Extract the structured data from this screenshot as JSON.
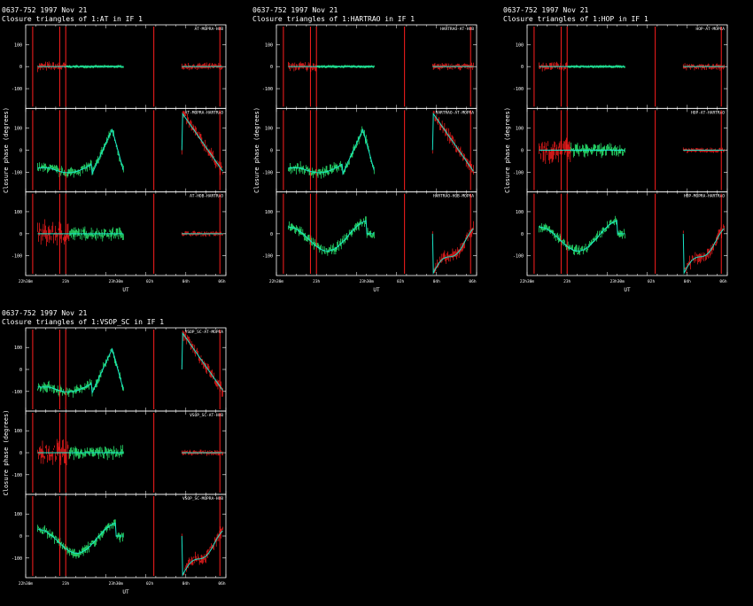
{
  "header": {
    "source": "0637-752",
    "date": "1997 Nov 21"
  },
  "common": {
    "xlabel": "UT",
    "ylabel": "Closure phase  (degrees)",
    "xticks": [
      "22h30m",
      "23h",
      "23h30m",
      "02h",
      "04h",
      "06h"
    ],
    "yticks": [
      "100",
      "0",
      "-100"
    ],
    "colors": {
      "data": "#ff1f1f",
      "model": "#19e6c8",
      "fit": "#2eff7a",
      "frame": "#ffffff"
    }
  },
  "chart_data": [
    {
      "type": "line",
      "title": "Closure triangles of 1:AT in IF 1",
      "xlabel": "UT",
      "ylabel": "Closure phase  (degrees)",
      "ylim": [
        -180,
        180
      ],
      "triangles": [
        {
          "label": "AT-MOPRA-HOB",
          "series": [
            {
              "name": "observed",
              "pattern": "flat"
            },
            {
              "name": "model",
              "pattern": "zero"
            }
          ]
        },
        {
          "label": "AT-MOPRA-HARTRAO",
          "series": [
            {
              "name": "observed",
              "pattern": "rampA"
            },
            {
              "name": "model",
              "pattern": "rampA"
            }
          ]
        },
        {
          "label": "AT-HOB-HARTRAO",
          "series": [
            {
              "name": "observed",
              "pattern": "noisy"
            },
            {
              "name": "model",
              "pattern": "zero"
            }
          ]
        }
      ]
    },
    {
      "type": "line",
      "title": "Closure triangles of 1:HARTRAO in IF 1",
      "xlabel": "UT",
      "ylabel": "Closure phase  (degrees)",
      "ylim": [
        -180,
        180
      ],
      "triangles": [
        {
          "label": "HARTRAO-AT-HOB",
          "series": [
            {
              "name": "observed",
              "pattern": "flat"
            },
            {
              "name": "model",
              "pattern": "zero"
            }
          ]
        },
        {
          "label": "HARTRAO-AT-MOPRA",
          "series": [
            {
              "name": "observed",
              "pattern": "rampA"
            },
            {
              "name": "model",
              "pattern": "rampA"
            }
          ]
        },
        {
          "label": "HARTRAO-HOB-MOPRA",
          "series": [
            {
              "name": "observed",
              "pattern": "wave"
            },
            {
              "name": "model",
              "pattern": "wave"
            }
          ]
        }
      ]
    },
    {
      "type": "line",
      "title": "Closure triangles of 1:HOP in IF 1",
      "xlabel": "UT",
      "ylabel": "Closure phase  (degrees)",
      "ylim": [
        -180,
        180
      ],
      "triangles": [
        {
          "label": "HOP-AT-MOPRA",
          "series": [
            {
              "name": "observed",
              "pattern": "flat"
            },
            {
              "name": "model",
              "pattern": "zero"
            }
          ]
        },
        {
          "label": "HOP-AT-HARTRAO",
          "series": [
            {
              "name": "observed",
              "pattern": "noisy"
            },
            {
              "name": "model",
              "pattern": "zero"
            }
          ]
        },
        {
          "label": "HOP-MOPRA-HARTRAO",
          "series": [
            {
              "name": "observed",
              "pattern": "wave"
            },
            {
              "name": "model",
              "pattern": "wave"
            }
          ]
        }
      ]
    },
    {
      "type": "line",
      "title": "Closure triangles of 1:VSOP_SC in IF 1",
      "xlabel": "UT",
      "ylabel": "Closure phase  (degrees)",
      "ylim": [
        -180,
        180
      ],
      "triangles": [
        {
          "label": "VSOP_SC-AT-MOPRA",
          "series": [
            {
              "name": "observed",
              "pattern": "rampA"
            },
            {
              "name": "model",
              "pattern": "rampA"
            }
          ]
        },
        {
          "label": "VSOP_SC-AT-HOB",
          "series": [
            {
              "name": "observed",
              "pattern": "noisy"
            },
            {
              "name": "model",
              "pattern": "zero"
            }
          ]
        },
        {
          "label": "VSOP_SC-MOPRA-HOB",
          "series": [
            {
              "name": "observed",
              "pattern": "wave"
            },
            {
              "name": "model",
              "pattern": "wave"
            }
          ]
        }
      ]
    }
  ]
}
